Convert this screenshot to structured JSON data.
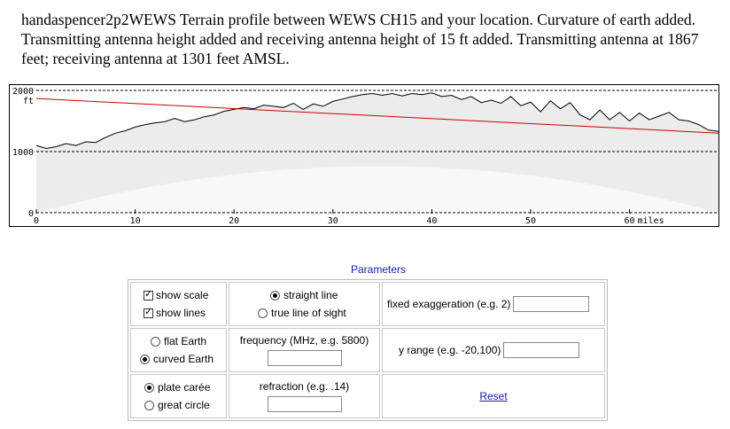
{
  "caption": "handaspencer2p2WEWS  Terrain profile between WEWS CH15 and your location. Curvature of earth added. Transmitting antenna height added and receiving antenna height of 15 ft added. Transmitting antenna at 1867 feet; receiving antenna at 1301 feet AMSL.",
  "chart_data": {
    "type": "area",
    "y_unit": "ft",
    "x_unit": "miles",
    "ylim": [
      0,
      2000
    ],
    "xlim": [
      0,
      69
    ],
    "y_ticks": [
      "2000",
      "1000",
      "0"
    ],
    "x_ticks": [
      "0",
      "10",
      "20",
      "30",
      "40",
      "50",
      "60"
    ],
    "line_of_sight": {
      "start_ft": 1867,
      "end_ft": 1301,
      "color": "#cc0000"
    },
    "terrain_x": [
      0,
      1,
      2,
      3,
      4,
      5,
      6,
      7,
      8,
      9,
      10,
      11,
      12,
      13,
      14,
      15,
      16,
      17,
      18,
      19,
      20,
      21,
      22,
      23,
      24,
      25,
      26,
      27,
      28,
      29,
      30,
      31,
      32,
      33,
      34,
      35,
      36,
      37,
      38,
      39,
      40,
      41,
      42,
      43,
      44,
      45,
      46,
      47,
      48,
      49,
      50,
      51,
      52,
      53,
      54,
      55,
      56,
      57,
      58,
      59,
      60,
      61,
      62,
      63,
      64,
      65,
      66,
      67,
      68,
      69
    ],
    "terrain_ft": [
      1100,
      1050,
      1080,
      1130,
      1100,
      1160,
      1150,
      1230,
      1300,
      1340,
      1400,
      1440,
      1470,
      1490,
      1540,
      1490,
      1520,
      1570,
      1600,
      1660,
      1690,
      1720,
      1700,
      1760,
      1740,
      1720,
      1790,
      1690,
      1780,
      1740,
      1820,
      1860,
      1900,
      1930,
      1950,
      1920,
      1950,
      1910,
      1950,
      1930,
      1960,
      1900,
      1920,
      1850,
      1900,
      1800,
      1840,
      1790,
      1900,
      1750,
      1810,
      1650,
      1830,
      1700,
      1800,
      1600,
      1520,
      1680,
      1520,
      1640,
      1500,
      1630,
      1520,
      1580,
      1640,
      1520,
      1500,
      1440,
      1350,
      1330
    ],
    "curvature_peak_ft": 760
  },
  "params": {
    "title": "Parameters",
    "show_scale": "show scale",
    "show_lines": "show lines",
    "straight_line": "straight line",
    "true_line_of_sight": "true line of sight",
    "fixed_exaggeration": "fixed exaggeration (e.g. 2)",
    "flat_earth": "flat Earth",
    "curved_earth": "curved Earth",
    "frequency": "frequency (MHz, e.g. 5800)",
    "y_range": "y range (e.g. -20,100)",
    "plate_caree": "plate carée",
    "great_circle": "great circle",
    "refraction": "refraction (e.g. .14)",
    "reset": "Reset"
  }
}
